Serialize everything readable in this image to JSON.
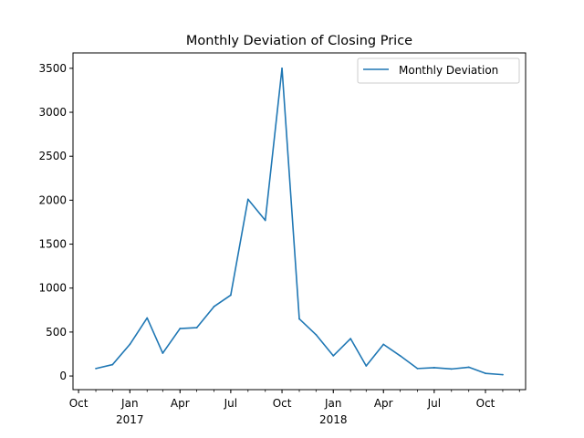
{
  "chart_data": {
    "type": "line",
    "title": "Monthly Deviation of Closing Price",
    "xlabel": "",
    "ylabel": "",
    "legend_position": "top-right",
    "grid": false,
    "color": "#1f77b4",
    "series": [
      {
        "name": "Monthly Deviation",
        "x": [
          "2016-11",
          "2016-12",
          "2017-01",
          "2017-02",
          "2017-03",
          "2017-04",
          "2017-05",
          "2017-06",
          "2017-07",
          "2017-08",
          "2017-09",
          "2017-10",
          "2017-11",
          "2017-12",
          "2018-01",
          "2018-02",
          "2018-03",
          "2018-04",
          "2018-05",
          "2018-06",
          "2018-07",
          "2018-08",
          "2018-09",
          "2018-10",
          "2018-11"
        ],
        "values": [
          85,
          130,
          360,
          660,
          260,
          540,
          550,
          790,
          920,
          2010,
          1770,
          3500,
          650,
          470,
          230,
          425,
          115,
          360,
          230,
          85,
          95,
          80,
          100,
          30,
          15
        ]
      }
    ],
    "xlim": [
      "2016-09-21",
      "2018-12-12"
    ],
    "ylim": [
      -155,
      3675
    ],
    "y_ticks": [
      0,
      500,
      1000,
      1500,
      2000,
      2500,
      3000,
      3500
    ],
    "x_ticks": [
      {
        "date": "2016-10-01",
        "label": "Oct",
        "sublabel": ""
      },
      {
        "date": "2017-01-01",
        "label": "Jan",
        "sublabel": "2017"
      },
      {
        "date": "2017-04-01",
        "label": "Apr",
        "sublabel": ""
      },
      {
        "date": "2017-07-01",
        "label": "Jul",
        "sublabel": ""
      },
      {
        "date": "2017-10-01",
        "label": "Oct",
        "sublabel": ""
      },
      {
        "date": "2018-01-01",
        "label": "Jan",
        "sublabel": "2018"
      },
      {
        "date": "2018-04-01",
        "label": "Apr",
        "sublabel": ""
      },
      {
        "date": "2018-07-01",
        "label": "Jul",
        "sublabel": ""
      },
      {
        "date": "2018-10-01",
        "label": "Oct",
        "sublabel": ""
      }
    ]
  }
}
